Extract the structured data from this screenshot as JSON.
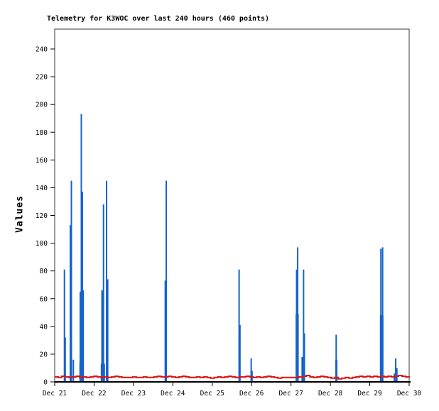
{
  "chart_data": {
    "type": "line",
    "title": "Telemetry for K3WOC over last 240 hours (460 points)",
    "ylabel": "Values",
    "xlabel": "",
    "x_tick_labels": [
      "Dec 21",
      "Dec 22",
      "Dec 23",
      "Dec 24",
      "Dec 25",
      "Dec 26",
      "Dec 27",
      "Dec 28",
      "Dec 29",
      "Dec 30"
    ],
    "y_tick_values": [
      0,
      20,
      40,
      60,
      80,
      100,
      120,
      140,
      160,
      180,
      200,
      220,
      240
    ],
    "ylim": [
      0,
      254
    ],
    "xlim_days": [
      0,
      9
    ],
    "grid": false,
    "legend": "none",
    "colors": {
      "spikes": "#1563CB",
      "baseline": "#E01212",
      "axis": "#000000",
      "border": "#3a3a3a",
      "text": "#000000"
    },
    "series": [
      {
        "name": "telemetry-spikes",
        "type": "impulse",
        "color": "#1563CB",
        "points": [
          {
            "d": 0.247,
            "v": 81
          },
          {
            "d": 0.267,
            "v": 32
          },
          {
            "d": 0.397,
            "v": 113
          },
          {
            "d": 0.424,
            "v": 145
          },
          {
            "d": 0.474,
            "v": 16
          },
          {
            "d": 0.649,
            "v": 65
          },
          {
            "d": 0.676,
            "v": 193
          },
          {
            "d": 0.703,
            "v": 137
          },
          {
            "d": 0.725,
            "v": 66
          },
          {
            "d": 0.676,
            "v": 14,
            "w": 5.5
          },
          {
            "d": 1.205,
            "v": 66,
            "w": 2.5
          },
          {
            "d": 1.223,
            "v": 13,
            "w": 6
          },
          {
            "d": 1.239,
            "v": 128
          },
          {
            "d": 1.317,
            "v": 145
          },
          {
            "d": 1.346,
            "v": 74
          },
          {
            "d": 2.807,
            "v": 73
          },
          {
            "d": 2.832,
            "v": 145
          },
          {
            "d": 4.682,
            "v": 81
          },
          {
            "d": 4.704,
            "v": 41
          },
          {
            "d": 4.989,
            "v": 17
          },
          {
            "d": 5.002,
            "v": 8,
            "w": 3
          },
          {
            "d": 6.142,
            "v": 81
          },
          {
            "d": 6.156,
            "v": 49,
            "w": 4.5
          },
          {
            "d": 6.169,
            "v": 97
          },
          {
            "d": 6.31,
            "v": 18,
            "w": 5
          },
          {
            "d": 6.319,
            "v": 81
          },
          {
            "d": 6.331,
            "v": 35,
            "w": 3
          },
          {
            "d": 7.147,
            "v": 34
          },
          {
            "d": 7.152,
            "v": 16,
            "w": 3
          },
          {
            "d": 8.282,
            "v": 96
          },
          {
            "d": 8.302,
            "v": 48,
            "w": 5
          },
          {
            "d": 8.326,
            "v": 97
          },
          {
            "d": 8.622,
            "v": 6
          },
          {
            "d": 8.658,
            "v": 17
          },
          {
            "d": 8.688,
            "v": 10
          }
        ]
      },
      {
        "name": "telemetry-baseline",
        "type": "step-line",
        "color": "#E01212",
        "x_start_day": 0,
        "x_step_day": 0.09,
        "values": [
          3.6,
          3.2,
          4.1,
          3.6,
          3.2,
          3.6,
          4.1,
          3.2,
          3.6,
          3.2,
          3.6,
          4.1,
          3.6,
          3.2,
          3.6,
          3.2,
          3.6,
          4.1,
          3.6,
          3.2,
          3.2,
          3.2,
          3.6,
          3.2,
          3.2,
          3.6,
          3.2,
          3.2,
          3.6,
          4.1,
          3.6,
          3.6,
          4.1,
          3.6,
          3.2,
          3.6,
          4.1,
          3.6,
          3.2,
          3.2,
          3.6,
          3.2,
          3.6,
          3.2,
          2.7,
          3.2,
          3.6,
          3.2,
          3.6,
          4.1,
          3.6,
          3.2,
          3.6,
          3.6,
          4.1,
          3.6,
          3.2,
          3.6,
          3.2,
          3.6,
          4.1,
          3.6,
          3.2,
          2.7,
          3.2,
          3.2,
          3.2,
          3.2,
          3.2,
          3.6,
          4.1,
          4.6,
          3.6,
          3.2,
          3.6,
          4.1,
          3.6,
          3.2,
          2.7,
          3.2,
          2.2,
          2.7,
          3.2,
          2.7,
          3.2,
          3.6,
          4.1,
          3.6,
          4.1,
          3.6,
          4.1,
          3.6,
          4.1,
          3.6,
          4.1,
          3.6,
          4.1,
          4.6,
          4.1,
          3.6,
          3.2
        ]
      }
    ]
  }
}
